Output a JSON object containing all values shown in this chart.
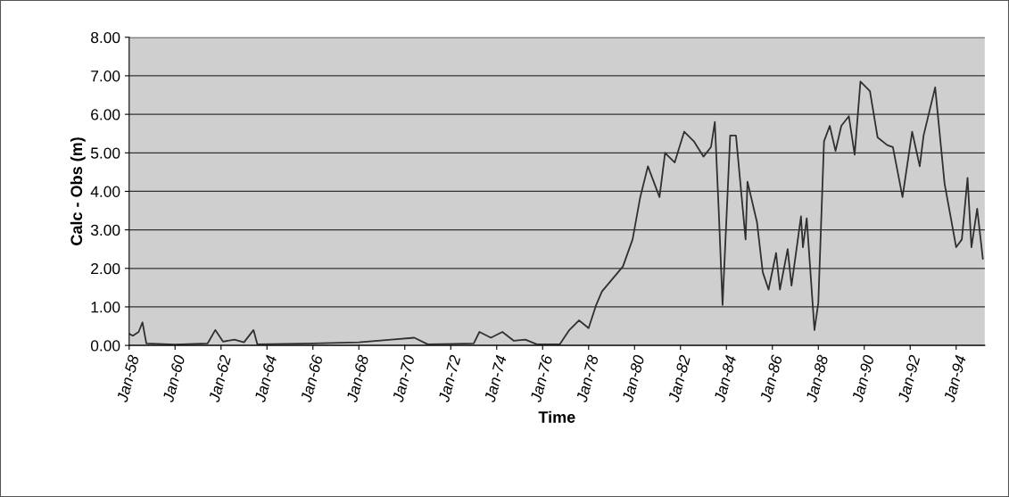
{
  "chart_data": {
    "type": "line",
    "xlabel": "Time",
    "ylabel": "Calc - Obs (m)",
    "grid": "y",
    "marker": "none",
    "line_style": "solid",
    "xlim": [
      "1958-01",
      "1995-04"
    ],
    "ylim": [
      0,
      8
    ],
    "yticks": [
      {
        "value": 0,
        "label": "0.00"
      },
      {
        "value": 1,
        "label": "1.00"
      },
      {
        "value": 2,
        "label": "2.00"
      },
      {
        "value": 3,
        "label": "3.00"
      },
      {
        "value": 4,
        "label": "4.00"
      },
      {
        "value": 5,
        "label": "5.00"
      },
      {
        "value": 6,
        "label": "6.00"
      },
      {
        "value": 7,
        "label": "7.00"
      },
      {
        "value": 8,
        "label": "8.00"
      }
    ],
    "xticks": [
      {
        "value": "1958-01",
        "label": "Jan-58"
      },
      {
        "value": "1960-01",
        "label": "Jan-60"
      },
      {
        "value": "1962-01",
        "label": "Jan-62"
      },
      {
        "value": "1964-01",
        "label": "Jan-64"
      },
      {
        "value": "1966-01",
        "label": "Jan-66"
      },
      {
        "value": "1968-01",
        "label": "Jan-68"
      },
      {
        "value": "1970-01",
        "label": "Jan-70"
      },
      {
        "value": "1972-01",
        "label": "Jan-72"
      },
      {
        "value": "1974-01",
        "label": "Jan-74"
      },
      {
        "value": "1976-01",
        "label": "Jan-76"
      },
      {
        "value": "1978-01",
        "label": "Jan-78"
      },
      {
        "value": "1980-01",
        "label": "Jan-80"
      },
      {
        "value": "1982-01",
        "label": "Jan-82"
      },
      {
        "value": "1984-01",
        "label": "Jan-84"
      },
      {
        "value": "1986-01",
        "label": "Jan-86"
      },
      {
        "value": "1988-01",
        "label": "Jan-88"
      },
      {
        "value": "1990-01",
        "label": "Jan-90"
      },
      {
        "value": "1992-01",
        "label": "Jan-92"
      },
      {
        "value": "1994-01",
        "label": "Jan-94"
      }
    ],
    "series": [
      {
        "color": "#303030",
        "x": [
          "1958-01",
          "1958-03",
          "1958-06",
          "1958-08",
          "1958-10",
          "1960-01",
          "1961-06",
          "1961-10",
          "1962-02",
          "1962-08",
          "1963-01",
          "1963-06",
          "1963-08",
          "1966-01",
          "1968-01",
          "1969-06",
          "1970-06",
          "1971-01",
          "1973-01",
          "1973-04",
          "1973-10",
          "1974-04",
          "1974-10",
          "1975-04",
          "1975-10",
          "1976-10",
          "1977-03",
          "1977-08",
          "1978-01",
          "1978-05",
          "1978-08",
          "1979-07",
          "1979-12",
          "1980-04",
          "1980-08",
          "1981-02",
          "1981-05",
          "1981-10",
          "1982-03",
          "1982-08",
          "1983-01",
          "1983-05",
          "1983-07",
          "1983-09",
          "1983-11",
          "1984-03",
          "1984-06",
          "1984-11",
          "1984-12",
          "1985-05",
          "1985-08",
          "1985-11",
          "1986-03",
          "1986-05",
          "1986-09",
          "1986-11",
          "1987-04",
          "1987-05",
          "1987-07",
          "1987-11",
          "1988-01",
          "1988-04",
          "1988-07",
          "1988-10",
          "1989-01",
          "1989-05",
          "1989-08",
          "1989-11",
          "1990-04",
          "1990-08",
          "1991-01",
          "1991-04",
          "1991-09",
          "1992-02",
          "1992-06",
          "1992-08",
          "1993-02",
          "1993-07",
          "1994-01",
          "1994-04",
          "1994-07",
          "1994-09",
          "1994-12",
          "1995-03"
        ],
        "values": [
          0.3,
          0.25,
          0.35,
          0.6,
          0.05,
          0.02,
          0.05,
          0.4,
          0.1,
          0.15,
          0.08,
          0.4,
          0.03,
          0.05,
          0.08,
          0.15,
          0.2,
          0.03,
          0.05,
          0.35,
          0.2,
          0.35,
          0.12,
          0.15,
          0.03,
          0.03,
          0.4,
          0.65,
          0.45,
          1.05,
          1.4,
          2.05,
          2.75,
          3.85,
          4.65,
          3.85,
          5.0,
          4.75,
          5.55,
          5.3,
          4.9,
          5.15,
          5.8,
          3.5,
          1.05,
          5.45,
          5.45,
          2.75,
          4.25,
          3.2,
          1.9,
          1.45,
          2.4,
          1.45,
          2.5,
          1.55,
          3.35,
          2.55,
          3.3,
          0.4,
          1.1,
          5.3,
          5.7,
          5.05,
          5.7,
          5.95,
          4.95,
          6.85,
          6.6,
          5.4,
          5.2,
          5.15,
          3.85,
          5.55,
          4.65,
          5.45,
          6.7,
          4.2,
          2.55,
          2.75,
          4.35,
          2.55,
          3.55,
          2.25
        ]
      }
    ]
  }
}
